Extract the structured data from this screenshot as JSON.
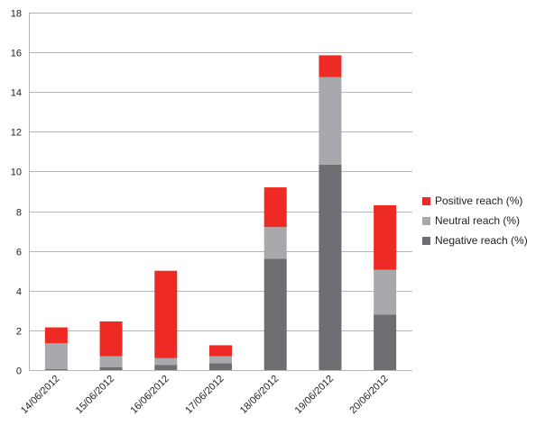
{
  "chart_data": {
    "type": "bar",
    "stacked": true,
    "categories": [
      "14/06/2012",
      "15/06/2012",
      "16/06/2012",
      "17/06/2012",
      "18/06/2012",
      "19/06/2012",
      "20/06/2012"
    ],
    "series": [
      {
        "name": "Negative reach (%)",
        "values": [
          0.05,
          0.15,
          0.25,
          0.35,
          5.6,
          10.35,
          2.8
        ],
        "color": "#6d6e71"
      },
      {
        "name": "Neutral reach (%)",
        "values": [
          1.3,
          0.55,
          0.35,
          0.35,
          1.6,
          4.4,
          2.25
        ],
        "color": "#a7a9ac"
      },
      {
        "name": "Positive reach (%)",
        "values": [
          0.8,
          1.75,
          4.4,
          0.55,
          2.0,
          1.1,
          3.25
        ],
        "color": "#ed2a24"
      }
    ],
    "ylim": [
      0,
      18
    ],
    "yticks": [
      0,
      2,
      4,
      6,
      8,
      10,
      12,
      14,
      16,
      18
    ],
    "grid": true,
    "legend_position": "right",
    "title": "",
    "xlabel": "",
    "ylabel": ""
  }
}
